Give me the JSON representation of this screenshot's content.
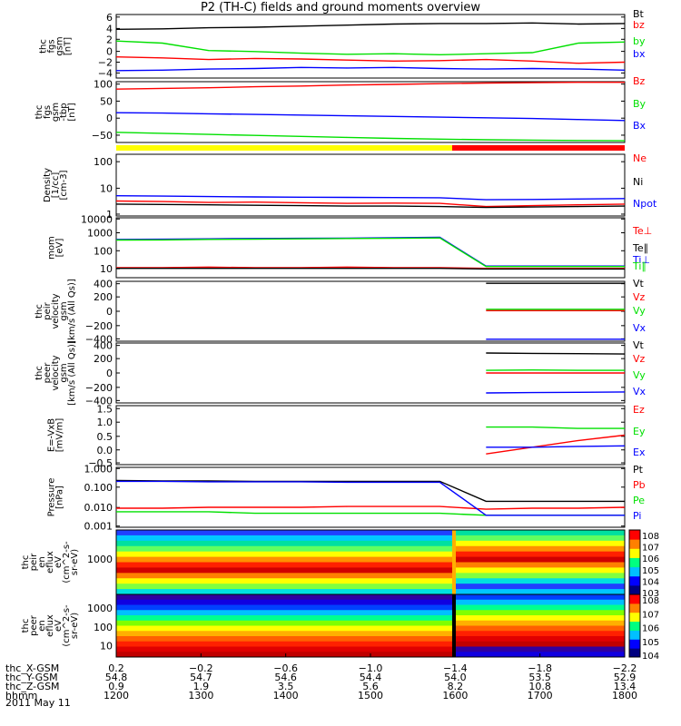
{
  "title": "P2 (TH-C) fields and ground moments overview",
  "date": "2011 May 11",
  "colors": {
    "black": "#000000",
    "red": "#ff0000",
    "green": "#00e000",
    "blue": "#0000ff",
    "yellow": "#ffff00"
  },
  "chart_data": [
    {
      "type": "line",
      "id": "fgs_gsm",
      "ylabel": [
        "thc",
        "fgs",
        "gsm",
        "[nT]"
      ],
      "yticks": [
        "6",
        "4",
        "2",
        "0",
        "−2",
        "−4"
      ],
      "ylim": [
        -5,
        7
      ],
      "series": [
        {
          "name": "Bt",
          "color": "black",
          "values": [
            4.2,
            4.3,
            4.5,
            4.6,
            4.8,
            5.0,
            5.2,
            5.3,
            5.3,
            5.4,
            5.2,
            5.3
          ]
        },
        {
          "name": "bz",
          "color": "red",
          "values": [
            -1.0,
            -1.2,
            -1.5,
            -1.3,
            -1.4,
            -1.6,
            -1.8,
            -1.7,
            -1.5,
            -1.8,
            -2.2,
            -2.0
          ]
        },
        {
          "name": "by",
          "color": "green",
          "values": [
            2.0,
            1.6,
            0.2,
            0.0,
            -0.3,
            -0.5,
            -0.4,
            -0.6,
            -0.4,
            -0.2,
            1.6,
            1.8
          ]
        },
        {
          "name": "bx",
          "color": "blue",
          "values": [
            -3.6,
            -3.5,
            -3.3,
            -3.2,
            -3.0,
            -3.1,
            -3.0,
            -3.2,
            -3.3,
            -3.2,
            -3.3,
            -3.5
          ]
        }
      ]
    },
    {
      "type": "line",
      "id": "fgs_gsm_tbp",
      "ylabel": [
        "thc",
        "fgs",
        "gsm",
        "-tbp",
        "[nT]"
      ],
      "yticks": [
        "100",
        "50",
        "0",
        "−50"
      ],
      "ylim": [
        -70,
        110
      ],
      "series": [
        {
          "name": "Bz",
          "color": "red",
          "values": [
            88,
            90,
            92,
            95,
            97,
            100,
            102,
            104,
            106,
            107,
            108,
            108
          ]
        },
        {
          "name": "By",
          "color": "green",
          "values": [
            -40,
            -43,
            -46,
            -49,
            -52,
            -55,
            -58,
            -60,
            -62,
            -63,
            -64,
            -65
          ]
        },
        {
          "name": "Bx",
          "color": "blue",
          "values": [
            18,
            17,
            15,
            13,
            11,
            9,
            7,
            5,
            3,
            1,
            -2,
            -5
          ]
        }
      ]
    },
    {
      "type": "line",
      "id": "density",
      "scale": "log",
      "ylabel": [
        "Density",
        "[1/cc]",
        "[cm-3]"
      ],
      "yticks": [
        "100",
        "10",
        "1"
      ],
      "ylim": [
        1,
        300
      ],
      "series": [
        {
          "name": "Ne",
          "color": "red",
          "values": [
            4.0,
            3.8,
            3.5,
            3.6,
            3.4,
            3.2,
            3.3,
            3.2,
            2.4,
            2.6,
            2.8,
            3.0
          ]
        },
        {
          "name": "Ni",
          "color": "black",
          "values": [
            3.0,
            2.9,
            2.8,
            2.7,
            2.6,
            2.5,
            2.5,
            2.4,
            2.2,
            2.3,
            2.4,
            2.5
          ]
        },
        {
          "name": "Npot",
          "color": "blue",
          "values": [
            6.5,
            6.3,
            6.0,
            5.8,
            5.7,
            5.6,
            5.5,
            5.4,
            4.5,
            4.6,
            4.8,
            5.0
          ]
        }
      ]
    },
    {
      "type": "line",
      "id": "moments_temp",
      "scale": "log",
      "ylabel": [
        "mom",
        "[eV]"
      ],
      "yticks": [
        "10000",
        "1000",
        "100",
        "10"
      ],
      "ylim": [
        3,
        12000
      ],
      "series": [
        {
          "name": "Te⊥",
          "color": "red",
          "values": [
            12,
            12,
            13,
            12,
            12,
            13,
            12,
            12,
            11,
            11,
            11,
            11
          ]
        },
        {
          "name": "Te∥",
          "color": "black",
          "values": [
            11,
            11,
            11,
            11,
            11,
            11,
            11,
            11,
            10,
            10,
            10,
            10
          ]
        },
        {
          "name": "Ti⊥",
          "color": "blue",
          "values": [
            600,
            620,
            650,
            680,
            700,
            720,
            760,
            800,
            15,
            15,
            15,
            15
          ]
        },
        {
          "name": "Ti∥",
          "color": "green",
          "values": [
            550,
            560,
            600,
            620,
            650,
            680,
            700,
            740,
            14,
            14,
            14,
            14
          ]
        }
      ]
    },
    {
      "type": "line",
      "id": "peir_velocity",
      "ylabel": [
        "thc",
        "peir",
        "velocity",
        "gsm",
        "[km/s (All Qs)]"
      ],
      "yticks": [
        "400",
        "200",
        "0",
        "−200",
        "−400"
      ],
      "ylim": [
        -450,
        450
      ],
      "series": [
        {
          "name": "Vt",
          "color": "black",
          "values": [
            null,
            null,
            null,
            null,
            null,
            null,
            null,
            null,
            420,
            420,
            420,
            420
          ]
        },
        {
          "name": "Vz",
          "color": "red",
          "values": [
            null,
            null,
            null,
            null,
            null,
            null,
            null,
            null,
            10,
            10,
            10,
            10
          ]
        },
        {
          "name": "Vy",
          "color": "green",
          "values": [
            null,
            null,
            null,
            null,
            null,
            null,
            null,
            null,
            30,
            30,
            30,
            30
          ]
        },
        {
          "name": "Vx",
          "color": "blue",
          "values": [
            null,
            null,
            null,
            null,
            null,
            null,
            null,
            null,
            -420,
            -420,
            -420,
            -420
          ]
        }
      ]
    },
    {
      "type": "line",
      "id": "peer_velocity",
      "ylabel": [
        "thc",
        "peer",
        "velocity",
        "gsm",
        "[km/s (All Qs)]"
      ],
      "yticks": [
        "400",
        "200",
        "0",
        "−200",
        "−400"
      ],
      "ylim": [
        -450,
        450
      ],
      "series": [
        {
          "name": "Vt",
          "color": "black",
          "values": [
            null,
            null,
            null,
            null,
            null,
            null,
            null,
            null,
            300,
            295,
            290,
            285
          ]
        },
        {
          "name": "Vz",
          "color": "red",
          "values": [
            null,
            null,
            null,
            null,
            null,
            null,
            null,
            null,
            0,
            0,
            0,
            0
          ]
        },
        {
          "name": "Vy",
          "color": "green",
          "values": [
            null,
            null,
            null,
            null,
            null,
            null,
            null,
            null,
            40,
            45,
            40,
            40
          ]
        },
        {
          "name": "Vx",
          "color": "blue",
          "values": [
            null,
            null,
            null,
            null,
            null,
            null,
            null,
            null,
            -300,
            -295,
            -290,
            -285
          ]
        }
      ]
    },
    {
      "type": "line",
      "id": "e_vxb",
      "ylabel": [
        "E=-VxB",
        "[mV/m]"
      ],
      "yticks": [
        "1.5",
        "1.0",
        "0.5",
        "0.0",
        "−0.5"
      ],
      "ylim": [
        -0.6,
        1.6
      ],
      "series": [
        {
          "name": "Ez",
          "color": "red",
          "values": [
            null,
            null,
            null,
            null,
            null,
            null,
            null,
            null,
            -0.2,
            0.05,
            0.3,
            0.5
          ]
        },
        {
          "name": "Ey",
          "color": "green",
          "values": [
            null,
            null,
            null,
            null,
            null,
            null,
            null,
            null,
            0.8,
            0.8,
            0.75,
            0.75
          ]
        },
        {
          "name": "Ex",
          "color": "blue",
          "values": [
            null,
            null,
            null,
            null,
            null,
            null,
            null,
            null,
            0.05,
            0.05,
            0.08,
            0.1
          ]
        }
      ]
    },
    {
      "type": "line",
      "id": "pressure",
      "scale": "log",
      "ylabel": [
        "Pressure",
        "[nPa]"
      ],
      "yticks": [
        "1.000",
        "0.100",
        "0.010",
        "0.001"
      ],
      "ylim": [
        0.001,
        1.0
      ],
      "series": [
        {
          "name": "Pt",
          "color": "black",
          "values": [
            0.22,
            0.21,
            0.21,
            0.2,
            0.2,
            0.2,
            0.2,
            0.2,
            0.02,
            0.02,
            0.02,
            0.02
          ]
        },
        {
          "name": "Pb",
          "color": "red",
          "values": [
            0.009,
            0.009,
            0.01,
            0.01,
            0.01,
            0.011,
            0.011,
            0.011,
            0.008,
            0.009,
            0.009,
            0.01
          ]
        },
        {
          "name": "Pe",
          "color": "green",
          "values": [
            0.006,
            0.006,
            0.006,
            0.005,
            0.005,
            0.005,
            0.005,
            0.005,
            0.004,
            0.004,
            0.004,
            0.004
          ]
        },
        {
          "name": "Pi",
          "color": "blue",
          "values": [
            0.2,
            0.2,
            0.19,
            0.19,
            0.19,
            0.18,
            0.18,
            0.18,
            0.004,
            0.004,
            0.004,
            0.004
          ]
        }
      ]
    },
    {
      "type": "heatmap",
      "id": "peir_eflux",
      "ylabel": [
        "thc",
        "peir",
        "en",
        "eflux",
        "eV",
        "(cm^2-s-",
        "sr-eV)"
      ],
      "yticks": [
        "1000"
      ],
      "colorbar_ticks": [
        "10^8",
        "10^7",
        "10^6",
        "10^5",
        "10^4",
        "10^3"
      ]
    },
    {
      "type": "heatmap",
      "id": "peer_eflux",
      "ylabel": [
        "thc",
        "peer",
        "en",
        "eflux",
        "eV",
        "(cm^2-s-",
        "sr-eV)"
      ],
      "yticks": [
        "1000",
        "100",
        "10"
      ],
      "colorbar_ticks": [
        "10^8",
        "10^7",
        "10^6",
        "10^5",
        "10^4"
      ]
    }
  ],
  "x_axis": {
    "rows": [
      {
        "label": "thc_X-GSM",
        "values": [
          "0.2",
          "−0.2",
          "−0.6",
          "−1.0",
          "−1.4",
          "−1.8",
          "−2.2"
        ]
      },
      {
        "label": "thc_Y-GSM",
        "values": [
          "54.8",
          "54.7",
          "54.6",
          "54.4",
          "54.0",
          "53.5",
          "52.9"
        ]
      },
      {
        "label": "thc_Z-GSM",
        "values": [
          "0.9",
          "1.9",
          "3.5",
          "5.6",
          "8.2",
          "10.8",
          "13.4"
        ]
      },
      {
        "label": "hhmm",
        "values": [
          "1200",
          "1300",
          "1400",
          "1500",
          "1600",
          "1700",
          "1800"
        ]
      }
    ]
  }
}
